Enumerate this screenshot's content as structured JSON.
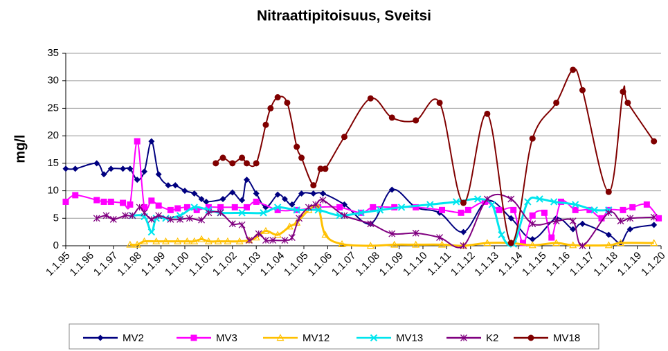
{
  "chart_data": {
    "type": "line",
    "title": "Nitraattipitoisuus, Sveitsi",
    "y_label": "mg/l",
    "xlim": [
      1995,
      2020
    ],
    "xticks": [
      {
        "value": 1995,
        "label": "1.1.95"
      },
      {
        "value": 1996,
        "label": "1.1.96"
      },
      {
        "value": 1997,
        "label": "1.1.97"
      },
      {
        "value": 1998,
        "label": "1.1.98"
      },
      {
        "value": 1999,
        "label": "1.1.99"
      },
      {
        "value": 2000,
        "label": "1.1.00"
      },
      {
        "value": 2001,
        "label": "1.1.01"
      },
      {
        "value": 2002,
        "label": "1.1.02"
      },
      {
        "value": 2003,
        "label": "1.1.03"
      },
      {
        "value": 2004,
        "label": "1.1.04"
      },
      {
        "value": 2005,
        "label": "1.1.05"
      },
      {
        "value": 2006,
        "label": "1.1.06"
      },
      {
        "value": 2007,
        "label": "1.1.07"
      },
      {
        "value": 2008,
        "label": "1.1.08"
      },
      {
        "value": 2009,
        "label": "1.1.09"
      },
      {
        "value": 2010,
        "label": "1.1.10"
      },
      {
        "value": 2011,
        "label": "1.1.11"
      },
      {
        "value": 2012,
        "label": "1.1.12"
      },
      {
        "value": 2013,
        "label": "1.1.13"
      },
      {
        "value": 2014,
        "label": "1.1.14"
      },
      {
        "value": 2015,
        "label": "1.1.15"
      },
      {
        "value": 2016,
        "label": "1.1.16"
      },
      {
        "value": 2017,
        "label": "1.1.17"
      },
      {
        "value": 2018,
        "label": "1.1.18"
      },
      {
        "value": 2019,
        "label": "1.1.19"
      },
      {
        "value": 2020,
        "label": "1.1.20"
      }
    ],
    "ylim": [
      0,
      35
    ],
    "yticks": [
      0,
      5,
      10,
      15,
      20,
      25,
      30,
      35
    ],
    "grid": true,
    "legend": "bottom",
    "series": [
      {
        "name": "MV2",
        "color": "#000080",
        "marker": "diamond",
        "x": [
          1995.0,
          1995.4,
          1996.3,
          1996.6,
          1996.9,
          1997.4,
          1997.7,
          1998.0,
          1998.3,
          1998.6,
          1998.9,
          1999.3,
          1999.6,
          2000.0,
          2000.4,
          2000.7,
          2000.9,
          2001.6,
          2002.0,
          2002.4,
          2002.6,
          2003.0,
          2003.4,
          2003.9,
          2004.2,
          2004.5,
          2004.9,
          2005.4,
          2005.8,
          2006.7,
          2007.8,
          2008.7,
          2009.7,
          2010.7,
          2011.7,
          2012.7,
          2013.7,
          2014.6,
          2015.6,
          2016.3,
          2016.7,
          2017.8,
          2018.3,
          2018.7,
          2019.7
        ],
        "values": [
          14,
          14,
          15,
          13,
          14,
          14,
          14,
          12,
          13.5,
          19,
          13,
          11,
          11,
          10,
          9.5,
          8.5,
          8,
          8.5,
          9.7,
          8.3,
          12,
          9.5,
          7,
          9.3,
          8.5,
          7.5,
          9.5,
          9.5,
          9.5,
          7.5,
          4,
          10.2,
          7,
          6,
          2.5,
          8.2,
          5,
          1.2,
          5,
          3,
          4,
          2,
          0.5,
          3,
          3.8
        ]
      },
      {
        "name": "MV3",
        "color": "#ff00ff",
        "marker": "square",
        "x": [
          1995.0,
          1995.4,
          1996.3,
          1996.6,
          1996.9,
          1997.4,
          1997.7,
          1998.0,
          1998.3,
          1998.6,
          1998.9,
          1999.4,
          1999.7,
          2000.1,
          2000.5,
          2001.0,
          2001.5,
          2002.1,
          2002.6,
          2003.0,
          2003.9,
          2004.7,
          2005.6,
          2006.5,
          2007.4,
          2007.9,
          2008.8,
          2009.7,
          2010.8,
          2011.6,
          2011.9,
          2012.6,
          2013.2,
          2013.8,
          2014.2,
          2014.6,
          2015.1,
          2015.4,
          2015.8,
          2016.4,
          2017.0,
          2017.5,
          2017.8,
          2018.4,
          2018.8,
          2019.4,
          2019.9
        ],
        "values": [
          8,
          9.2,
          8.3,
          8,
          8,
          7.8,
          7.5,
          19,
          7,
          8.2,
          7.3,
          6.5,
          6.8,
          7,
          6.5,
          7,
          7,
          7,
          7,
          8,
          6.5,
          6.5,
          7,
          7,
          6,
          7,
          7,
          7,
          6.5,
          6,
          6.5,
          8,
          6.5,
          6.5,
          0.5,
          5.5,
          6,
          1.5,
          8,
          6.5,
          6.5,
          5,
          6.5,
          6.5,
          7,
          7.5,
          5
        ]
      },
      {
        "name": "MV12",
        "color": "#ffc000",
        "marker": "triangle",
        "x": [
          1997.7,
          1998.0,
          1998.3,
          1998.8,
          1999.2,
          1999.7,
          2000.1,
          2000.4,
          2000.7,
          2001.0,
          2001.4,
          2001.8,
          2002.3,
          2002.7,
          2003.0,
          2003.4,
          2003.9,
          2004.4,
          2004.7,
          2005.2,
          2005.6,
          2005.9,
          2006.6,
          2007.8,
          2008.8,
          2009.7,
          2010.8,
          2011.7,
          2012.7,
          2013.7,
          2014.6,
          2015.6,
          2016.3,
          2017.8,
          2018.3,
          2019.7
        ],
        "values": [
          0.2,
          0.2,
          0.8,
          0.8,
          0.8,
          0.8,
          0.8,
          0.8,
          1.2,
          0.8,
          0.8,
          0.8,
          0.8,
          1,
          1.5,
          2.7,
          2,
          3.5,
          4.2,
          6.5,
          7,
          2,
          0.3,
          0,
          0.2,
          0.2,
          0.2,
          0,
          0.5,
          0.5,
          0.1,
          0.5,
          0.1,
          0.1,
          0.5,
          0.5
        ]
      },
      {
        "name": "MV13",
        "color": "#00e5ee",
        "marker": "cross",
        "x": [
          1997.8,
          1998.3,
          1998.6,
          1998.8,
          1999.2,
          1999.8,
          2000.4,
          2001.0,
          2001.5,
          2002.4,
          2003.3,
          2003.9,
          2004.7,
          2005.6,
          2006.5,
          2007.4,
          2008.2,
          2009.1,
          2010.3,
          2011.4,
          2012.3,
          2012.9,
          2013.3,
          2013.8,
          2014.4,
          2014.9,
          2015.5,
          2016.4,
          2017.2,
          2017.8
        ],
        "values": [
          5.5,
          5.3,
          2.5,
          5,
          5,
          5.5,
          7,
          6.5,
          6,
          6,
          6,
          7,
          6.5,
          6.5,
          5.5,
          6,
          6.5,
          7,
          7.5,
          8,
          8.5,
          7.5,
          2,
          0.3,
          8,
          8.5,
          8,
          7.5,
          6.5,
          6.5
        ]
      },
      {
        "name": "K2",
        "color": "#800080",
        "marker": "star",
        "x": [
          1996.3,
          1996.7,
          1997.0,
          1997.5,
          1997.8,
          1998.1,
          1998.3,
          1998.6,
          1998.9,
          1999.4,
          1999.8,
          2000.2,
          2000.7,
          2001.0,
          2001.5,
          2002.0,
          2002.4,
          2002.7,
          2003.1,
          2003.4,
          2003.7,
          2004.2,
          2004.5,
          2004.8,
          2005.2,
          2005.5,
          2005.8,
          2006.7,
          2007.8,
          2008.7,
          2009.7,
          2010.7,
          2011.7,
          2012.7,
          2013.7,
          2014.6,
          2015.6,
          2016.3,
          2016.7,
          2017.8,
          2018.3,
          2018.7,
          2019.7
        ],
        "values": [
          5,
          5.5,
          4.8,
          5.5,
          5.5,
          7,
          6,
          4.8,
          5.5,
          4.8,
          4.8,
          5,
          4.7,
          6,
          6,
          4,
          3.8,
          1,
          2.2,
          1,
          1,
          1,
          1.5,
          5,
          7,
          7.5,
          8.3,
          5.5,
          4,
          2.2,
          2.3,
          1.5,
          0,
          8.5,
          8.5,
          4,
          4.5,
          4.5,
          0,
          6,
          4.5,
          5,
          5.2
        ]
      },
      {
        "name": "MV18",
        "color": "#800000",
        "marker": "circle",
        "x": [
          2001.3,
          2001.6,
          2002.0,
          2002.4,
          2002.6,
          2003.0,
          2003.4,
          2003.6,
          2003.9,
          2004.3,
          2004.7,
          2004.9,
          2005.4,
          2005.7,
          2005.9,
          2006.7,
          2007.8,
          2008.7,
          2009.7,
          2010.7,
          2011.7,
          2012.7,
          2013.7,
          2014.6,
          2015.6,
          2016.3,
          2016.7,
          2017.8,
          2018.4,
          2018.6,
          2019.7
        ],
        "values": [
          15,
          16,
          15,
          16,
          15,
          15,
          22,
          25,
          27,
          26,
          18,
          16,
          11,
          14,
          14,
          19.8,
          26.8,
          23.3,
          22.8,
          26,
          7.8,
          24,
          0.5,
          19.5,
          26,
          32,
          28.3,
          9.8,
          28,
          26,
          19
        ]
      }
    ]
  }
}
